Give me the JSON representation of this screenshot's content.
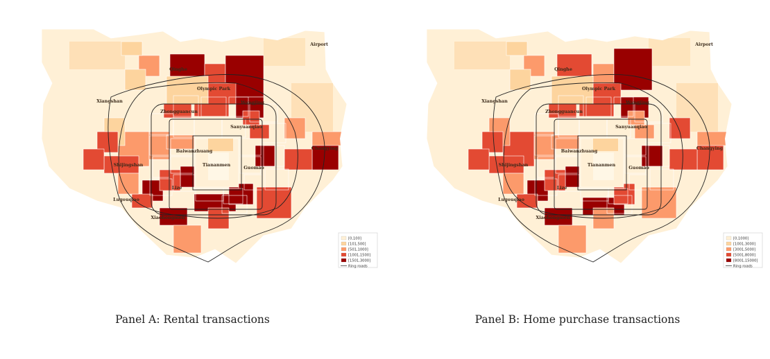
{
  "colors": {
    "bin1": "#fff0d6",
    "bin2": "#fdd49e",
    "bin3": "#fc9a6b",
    "bin4": "#e34a33",
    "bin5": "#990000",
    "ring": "#222222"
  },
  "places": [
    {
      "name": "Airport",
      "key": "airport"
    },
    {
      "name": "Qinghe",
      "key": "qinghe"
    },
    {
      "name": "Olympic Park",
      "key": "olympic"
    },
    {
      "name": "Xiangshan",
      "key": "xiangshan"
    },
    {
      "name": "Wangjing",
      "key": "wangjing"
    },
    {
      "name": "Zhongguancun",
      "key": "zhongguancun"
    },
    {
      "name": "Sanyuanqiao",
      "key": "sanyuanqiao"
    },
    {
      "name": "Changying",
      "key": "changying"
    },
    {
      "name": "Baiwanzhuang",
      "key": "baiwanzhuang"
    },
    {
      "name": "Tiananmen",
      "key": "tiananmen"
    },
    {
      "name": "Shijingshan",
      "key": "shijingshan"
    },
    {
      "name": "Guomao",
      "key": "guomao"
    },
    {
      "name": "Lize",
      "key": "lize"
    },
    {
      "name": "Lugouqiao",
      "key": "lugouqiao"
    },
    {
      "name": "Xiaohongmen",
      "key": "xiaohongmen"
    }
  ],
  "panels": [
    {
      "id": "A",
      "caption": "Panel A: Rental transactions",
      "legend": [
        "[0,100]",
        "[101,500]",
        "[501,1000]",
        "[1001,1500]",
        "[1501,3000]",
        "Ring roads"
      ]
    },
    {
      "id": "B",
      "caption": "Panel B: Home purchase transactions",
      "legend": [
        "[0,1000]",
        "[1001,3000]",
        "[3001,5000]",
        "[5001,8000]",
        "[8001,15000]",
        "Ring roads"
      ]
    }
  ]
}
